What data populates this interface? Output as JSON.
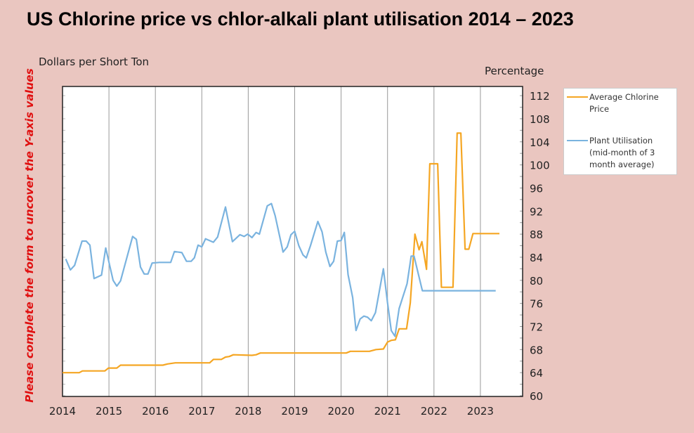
{
  "title": "US Chlorine price vs chlor-alkali plant utilisation 2014 – 2023",
  "side_note": "Please complete the form to uncover the Y-axis values",
  "chart_data": {
    "type": "line",
    "title": "US Chlorine price vs chlor-alkali plant utilisation 2014 – 2023",
    "left_axis_label": "Dollars per Short Ton",
    "right_axis_label": "Percentage",
    "left_axis_values_hidden": true,
    "x_ticks": [
      "2014",
      "2015",
      "2016",
      "2017",
      "2018",
      "2019",
      "2020",
      "2021",
      "2022",
      "2023"
    ],
    "xlim": [
      2014,
      2024
    ],
    "y_ticks": [
      "112",
      "108",
      "104",
      "100",
      "96",
      "92",
      "88",
      "84",
      "80",
      "76",
      "72",
      "68",
      "64",
      "60"
    ],
    "ylim": [
      60,
      113.6
    ],
    "grid": "vertical",
    "legend_position": "right",
    "series": [
      {
        "name": "Average Chlorine Price",
        "color": "#f5a623",
        "axis": "left",
        "points": [
          [
            2014.0,
            64.0
          ],
          [
            2014.36,
            64.0
          ],
          [
            2014.43,
            64.3
          ],
          [
            2014.91,
            64.3
          ],
          [
            2014.99,
            64.8
          ],
          [
            2015.17,
            64.8
          ],
          [
            2015.25,
            65.3
          ],
          [
            2016.16,
            65.3
          ],
          [
            2016.26,
            65.5
          ],
          [
            2016.43,
            65.7
          ],
          [
            2017.17,
            65.7
          ],
          [
            2017.25,
            66.3
          ],
          [
            2017.42,
            66.3
          ],
          [
            2017.51,
            66.7
          ],
          [
            2017.59,
            66.8
          ],
          [
            2017.68,
            67.1
          ],
          [
            2018.08,
            67.0
          ],
          [
            2018.17,
            67.1
          ],
          [
            2018.26,
            67.4
          ],
          [
            2020.11,
            67.4
          ],
          [
            2020.2,
            67.7
          ],
          [
            2020.61,
            67.7
          ],
          [
            2020.75,
            68.0
          ],
          [
            2020.91,
            68.1
          ],
          [
            2021.0,
            69.3
          ],
          [
            2021.08,
            69.6
          ],
          [
            2021.17,
            69.7
          ],
          [
            2021.25,
            71.6
          ],
          [
            2021.41,
            71.6
          ],
          [
            2021.49,
            76.1
          ],
          [
            2021.59,
            88.0
          ],
          [
            2021.68,
            85.3
          ],
          [
            2021.74,
            86.7
          ],
          [
            2021.84,
            81.9
          ],
          [
            2021.91,
            100.2
          ],
          [
            2022.08,
            100.2
          ],
          [
            2022.16,
            78.8
          ],
          [
            2022.41,
            78.8
          ],
          [
            2022.5,
            105.5
          ],
          [
            2022.58,
            105.5
          ],
          [
            2022.67,
            85.4
          ],
          [
            2022.75,
            85.4
          ],
          [
            2022.84,
            88.1
          ],
          [
            2023.41,
            88.1
          ]
        ]
      },
      {
        "name": "Plant Utilisation (mid-month of 3 month average)",
        "color": "#7ab3df",
        "axis": "right",
        "points": [
          [
            2014.07,
            83.7
          ],
          [
            2014.17,
            81.8
          ],
          [
            2014.26,
            82.6
          ],
          [
            2014.42,
            86.8
          ],
          [
            2014.51,
            86.8
          ],
          [
            2014.59,
            86.1
          ],
          [
            2014.68,
            80.3
          ],
          [
            2014.84,
            80.9
          ],
          [
            2014.93,
            85.6
          ],
          [
            2015.09,
            80.0
          ],
          [
            2015.17,
            79.0
          ],
          [
            2015.25,
            79.9
          ],
          [
            2015.51,
            87.6
          ],
          [
            2015.59,
            87.1
          ],
          [
            2015.68,
            82.3
          ],
          [
            2015.76,
            81.1
          ],
          [
            2015.84,
            81.1
          ],
          [
            2015.93,
            83.0
          ],
          [
            2016.09,
            83.1
          ],
          [
            2016.33,
            83.1
          ],
          [
            2016.41,
            85.0
          ],
          [
            2016.57,
            84.8
          ],
          [
            2016.67,
            83.3
          ],
          [
            2016.77,
            83.3
          ],
          [
            2016.84,
            83.9
          ],
          [
            2016.92,
            86.1
          ],
          [
            2017.0,
            85.8
          ],
          [
            2017.08,
            87.2
          ],
          [
            2017.25,
            86.6
          ],
          [
            2017.34,
            87.5
          ],
          [
            2017.51,
            92.7
          ],
          [
            2017.66,
            86.7
          ],
          [
            2017.82,
            87.9
          ],
          [
            2017.91,
            87.6
          ],
          [
            2017.99,
            88.0
          ],
          [
            2018.08,
            87.4
          ],
          [
            2018.17,
            88.3
          ],
          [
            2018.24,
            88.0
          ],
          [
            2018.41,
            92.9
          ],
          [
            2018.5,
            93.3
          ],
          [
            2018.58,
            91.2
          ],
          [
            2018.75,
            84.9
          ],
          [
            2018.84,
            85.8
          ],
          [
            2018.92,
            87.9
          ],
          [
            2019.0,
            88.5
          ],
          [
            2019.09,
            86.0
          ],
          [
            2019.18,
            84.4
          ],
          [
            2019.25,
            83.9
          ],
          [
            2019.34,
            86.0
          ],
          [
            2019.5,
            90.2
          ],
          [
            2019.59,
            88.4
          ],
          [
            2019.67,
            84.9
          ],
          [
            2019.76,
            82.4
          ],
          [
            2019.84,
            83.3
          ],
          [
            2019.92,
            86.8
          ],
          [
            2020.0,
            86.9
          ],
          [
            2020.07,
            88.3
          ],
          [
            2020.15,
            81.0
          ],
          [
            2020.25,
            77.0
          ],
          [
            2020.32,
            71.3
          ],
          [
            2020.41,
            73.3
          ],
          [
            2020.49,
            73.8
          ],
          [
            2020.57,
            73.6
          ],
          [
            2020.65,
            73.0
          ],
          [
            2020.74,
            74.4
          ],
          [
            2020.91,
            82.0
          ],
          [
            2021.0,
            76.1
          ],
          [
            2021.08,
            71.3
          ],
          [
            2021.16,
            70.3
          ],
          [
            2021.25,
            75.1
          ],
          [
            2021.42,
            79.4
          ],
          [
            2021.51,
            84.2
          ],
          [
            2021.57,
            84.2
          ],
          [
            2021.75,
            78.2
          ],
          [
            2023.33,
            78.2
          ]
        ]
      }
    ]
  }
}
